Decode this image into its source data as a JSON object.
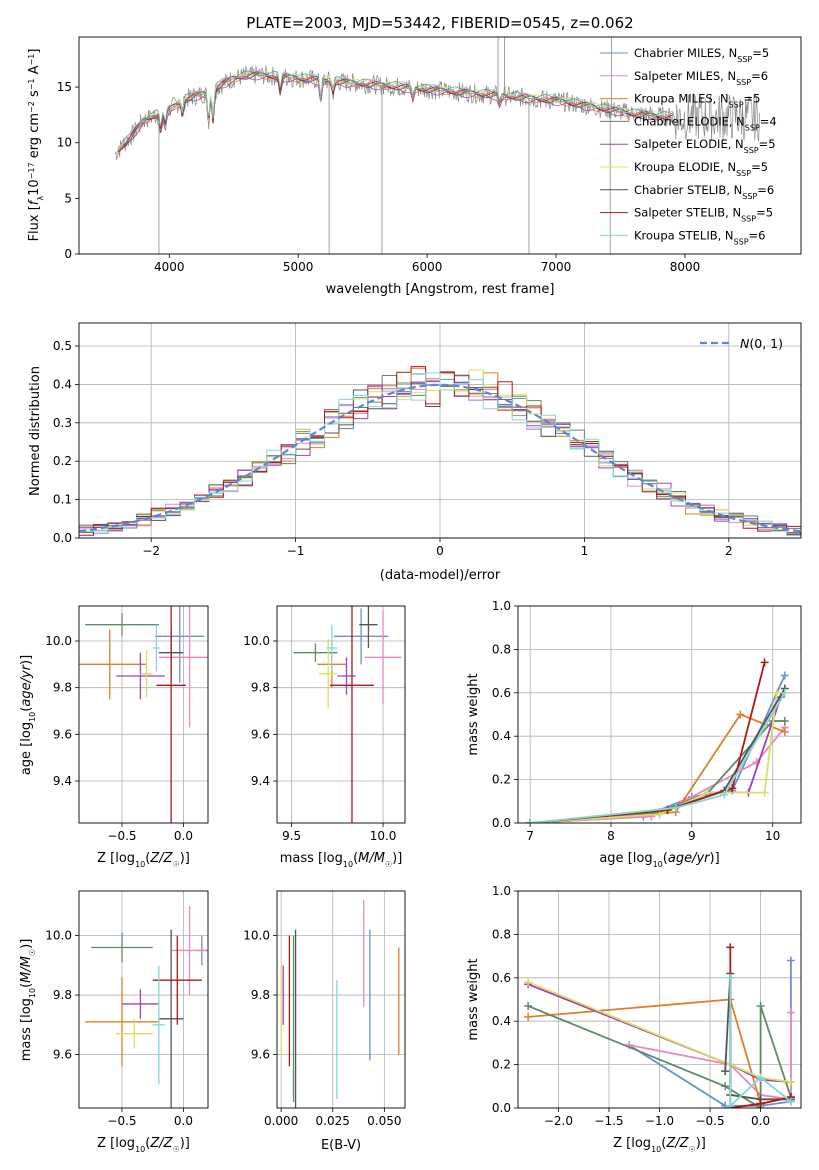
{
  "figure": {
    "title": "PLATE=2003, MJD=53442, FIBERID=0545, z=0.062",
    "colors": {
      "Chabrier MILES": "#6b8fd6",
      "Salpeter MILES": "#e88ac0",
      "Kroupa MILES": "#e07f2a",
      "Chabrier ELODIE": "#5f8a66",
      "Salpeter ELODIE": "#a040b8",
      "Kroupa ELODIE": "#d8e060",
      "Chabrier STELIB": "#555555",
      "Salpeter STELIB": "#b01818",
      "Kroupa STELIB": "#80d8d8"
    }
  },
  "chart_data": [
    {
      "id": "spectrum",
      "type": "line",
      "xlabel": "wavelength [Angstrom, rest frame]",
      "ylabel": "Flux [f_λ 10^-17 erg cm^-2 s^-1 A^-1]",
      "xlim": [
        3300,
        8900
      ],
      "ylim": [
        0,
        19.5
      ],
      "xticks": [
        4000,
        5000,
        6000,
        7000,
        8000
      ],
      "yticks": [
        0,
        5,
        10,
        15
      ],
      "legend_position": "top-right",
      "legend": [
        {
          "model": "Chabrier MILES",
          "label": "Chabrier MILES, N",
          "nssp": "=5"
        },
        {
          "model": "Salpeter MILES",
          "label": "Salpeter MILES, N",
          "nssp": "=6"
        },
        {
          "model": "Kroupa MILES",
          "label": "Kroupa MILES, N",
          "nssp": "=5"
        },
        {
          "model": "Chabrier ELODIE",
          "label": "Chabrier ELODIE, N",
          "nssp": "=4"
        },
        {
          "model": "Salpeter ELODIE",
          "label": "Salpeter ELODIE, N",
          "nssp": "=5"
        },
        {
          "model": "Kroupa ELODIE",
          "label": "Kroupa ELODIE, N",
          "nssp": "=5"
        },
        {
          "model": "Chabrier STELIB",
          "label": "Chabrier STELIB, N",
          "nssp": "=6"
        },
        {
          "model": "Salpeter STELIB",
          "label": "Salpeter STELIB, N",
          "nssp": "=5"
        },
        {
          "model": "Kroupa STELIB",
          "label": "Kroupa STELIB, N",
          "nssp": "=6"
        }
      ],
      "continuum": [
        [
          3580,
          9.0
        ],
        [
          3700,
          10.5
        ],
        [
          3800,
          12.0
        ],
        [
          3900,
          12.5
        ],
        [
          4000,
          13.0
        ],
        [
          4100,
          13.8
        ],
        [
          4200,
          14.2
        ],
        [
          4300,
          14.5
        ],
        [
          4400,
          15.2
        ],
        [
          4500,
          15.8
        ],
        [
          4600,
          16.0
        ],
        [
          4700,
          16.1
        ],
        [
          4800,
          16.0
        ],
        [
          4900,
          15.9
        ],
        [
          5000,
          15.8
        ],
        [
          5200,
          15.6
        ],
        [
          5400,
          15.4
        ],
        [
          5600,
          15.2
        ],
        [
          5800,
          15.0
        ],
        [
          6000,
          14.8
        ],
        [
          6200,
          14.6
        ],
        [
          6400,
          14.4
        ],
        [
          6600,
          14.2
        ],
        [
          6800,
          14.0
        ],
        [
          7000,
          13.8
        ],
        [
          7200,
          13.4
        ],
        [
          7400,
          13.0
        ],
        [
          7600,
          12.6
        ],
        [
          7800,
          12.4
        ],
        [
          7900,
          12.3
        ]
      ],
      "absorption_features": [
        [
          3934,
          11.0
        ],
        [
          3968,
          11.5
        ],
        [
          4102,
          12.5
        ],
        [
          4305,
          12.0
        ],
        [
          4340,
          12.0
        ],
        [
          4861,
          14.5
        ],
        [
          5175,
          14.0
        ],
        [
          5270,
          14.5
        ],
        [
          5890,
          14.0
        ],
        [
          6563,
          13.5
        ]
      ],
      "spikes": [
        [
          3920,
          0
        ],
        [
          5240,
          0
        ],
        [
          5650,
          0
        ],
        [
          6790,
          0
        ],
        [
          7420,
          0
        ],
        [
          6550,
          19.5
        ],
        [
          6600,
          19.5
        ],
        [
          7430,
          19.5
        ]
      ]
    },
    {
      "id": "residuals",
      "type": "bar",
      "xlabel": "(data-model)/error",
      "ylabel": "Normed distribution",
      "xlim": [
        -2.5,
        2.5
      ],
      "ylim": [
        0,
        0.56
      ],
      "xticks": [
        -2,
        -1,
        0,
        1,
        2
      ],
      "yticks": [
        0.0,
        0.1,
        0.2,
        0.3,
        0.4,
        0.5
      ],
      "bin_start": -2.5,
      "bin_width": 0.1,
      "reference_label": "N(0,1)",
      "reference_mu": 0,
      "reference_sigma": 1,
      "legend_position": "top-right"
    },
    {
      "id": "age-vs-metallicity",
      "type": "scatter",
      "xlabel": "Z [log10(Z/Z☉)]",
      "ylabel": "age [log10(age/yr)]",
      "xlim": [
        -0.85,
        0.2
      ],
      "ylim": [
        9.22,
        10.15
      ],
      "xticks": [
        -0.5,
        0.0
      ],
      "yticks": [
        9.4,
        9.6,
        9.8,
        10.0
      ],
      "points": [
        {
          "model": "Chabrier MILES",
          "x": -0.03,
          "y": 10.02,
          "xerr": 0.2,
          "yerr": 0.2
        },
        {
          "model": "Salpeter MILES",
          "x": 0.05,
          "y": 9.93,
          "xerr": 0.25,
          "yerr": 0.3
        },
        {
          "model": "Kroupa MILES",
          "x": -0.6,
          "y": 9.9,
          "xerr": 0.3,
          "yerr": 0.15
        },
        {
          "model": "Chabrier ELODIE",
          "x": -0.5,
          "y": 10.07,
          "xerr": 0.3,
          "yerr": 0.05
        },
        {
          "model": "Salpeter ELODIE",
          "x": -0.35,
          "y": 9.85,
          "xerr": 0.2,
          "yerr": 0.1
        },
        {
          "model": "Kroupa ELODIE",
          "x": -0.3,
          "y": 9.86,
          "xerr": 0.05,
          "yerr": 0.1
        },
        {
          "model": "Chabrier STELIB",
          "x": -0.1,
          "y": 9.95,
          "xerr": 0.1,
          "yerr": 0.1
        },
        {
          "model": "Salpeter STELIB",
          "x": -0.1,
          "y": 9.81,
          "xerr": 0.12,
          "yerr": 0.6
        },
        {
          "model": "Kroupa STELIB",
          "x": -0.22,
          "y": 9.97,
          "xerr": 0.03,
          "yerr": 0.1
        }
      ]
    },
    {
      "id": "age-vs-mass",
      "type": "scatter",
      "xlabel": "mass [log10(M/M☉)]",
      "ylabel": "",
      "xlim": [
        9.42,
        10.12
      ],
      "ylim": [
        9.22,
        10.15
      ],
      "xticks": [
        9.5,
        10.0
      ],
      "yticks": [
        9.4,
        9.6,
        9.8,
        10.0
      ],
      "points": [
        {
          "model": "Chabrier MILES",
          "x": 9.88,
          "y": 10.02,
          "xerr": 0.15,
          "yerr": 0.12
        },
        {
          "model": "Salpeter MILES",
          "x": 10.0,
          "y": 9.93,
          "xerr": 0.1,
          "yerr": 0.2
        },
        {
          "model": "Kroupa MILES",
          "x": 9.72,
          "y": 9.9,
          "xerr": 0.08,
          "yerr": 0.1
        },
        {
          "model": "Chabrier ELODIE",
          "x": 9.63,
          "y": 9.95,
          "xerr": 0.12,
          "yerr": 0.04
        },
        {
          "model": "Salpeter ELODIE",
          "x": 9.8,
          "y": 9.85,
          "xerr": 0.05,
          "yerr": 0.08
        },
        {
          "model": "Kroupa ELODIE",
          "x": 9.7,
          "y": 9.86,
          "xerr": 0.05,
          "yerr": 0.15
        },
        {
          "model": "Chabrier STELIB",
          "x": 9.92,
          "y": 10.07,
          "xerr": 0.05,
          "yerr": 0.1
        },
        {
          "model": "Salpeter STELIB",
          "x": 9.83,
          "y": 9.81,
          "xerr": 0.12,
          "yerr": 0.6
        },
        {
          "model": "Kroupa STELIB",
          "x": 9.72,
          "y": 9.97,
          "xerr": 0.03,
          "yerr": 0.1
        }
      ]
    },
    {
      "id": "weight-vs-age",
      "type": "line",
      "xlabel": "age [log10(age/yr)]",
      "ylabel": "mass weight",
      "xlim": [
        6.85,
        10.35
      ],
      "ylim": [
        0,
        1.0
      ],
      "xticks": [
        7,
        8,
        9,
        10
      ],
      "yticks": [
        0.0,
        0.2,
        0.4,
        0.6,
        0.8,
        1.0
      ],
      "series": [
        {
          "model": "Chabrier MILES",
          "x": [
            7.0,
            8.4,
            9.0,
            9.5,
            10.15
          ],
          "y": [
            0.0,
            0.03,
            0.12,
            0.15,
            0.68
          ]
        },
        {
          "model": "Salpeter MILES",
          "x": [
            7.0,
            8.5,
            8.9,
            9.8,
            10.15
          ],
          "y": [
            0.0,
            0.03,
            0.1,
            0.28,
            0.44
          ]
        },
        {
          "model": "Kroupa MILES",
          "x": [
            7.0,
            8.8,
            9.6,
            10.15
          ],
          "y": [
            0.0,
            0.05,
            0.5,
            0.42
          ]
        },
        {
          "model": "Chabrier ELODIE",
          "x": [
            7.0,
            8.6,
            9.2,
            10.0,
            10.15
          ],
          "y": [
            0.0,
            0.05,
            0.14,
            0.47,
            0.47
          ]
        },
        {
          "model": "Salpeter ELODIE",
          "x": [
            7.0,
            8.6,
            9.2,
            9.7,
            10.1
          ],
          "y": [
            0.0,
            0.04,
            0.14,
            0.14,
            0.58
          ]
        },
        {
          "model": "Kroupa ELODIE",
          "x": [
            7.0,
            8.6,
            9.2,
            9.9,
            10.05
          ],
          "y": [
            0.0,
            0.04,
            0.14,
            0.14,
            0.6
          ]
        },
        {
          "model": "Chabrier STELIB",
          "x": [
            7.0,
            8.7,
            9.4,
            10.15
          ],
          "y": [
            0.0,
            0.06,
            0.15,
            0.62
          ]
        },
        {
          "model": "Salpeter STELIB",
          "x": [
            7.0,
            8.7,
            9.5,
            9.9
          ],
          "y": [
            0.0,
            0.06,
            0.16,
            0.74
          ]
        },
        {
          "model": "Kroupa STELIB",
          "x": [
            7.0,
            8.8,
            9.4,
            10.15
          ],
          "y": [
            0.0,
            0.07,
            0.13,
            0.6
          ]
        }
      ]
    },
    {
      "id": "mass-vs-metallicity",
      "type": "scatter",
      "xlabel": "Z [log10(Z/Z☉)]",
      "ylabel": "mass [log10(M/M☉)]",
      "xlim": [
        -0.85,
        0.2
      ],
      "ylim": [
        9.42,
        10.15
      ],
      "xticks": [
        -0.5,
        0.0
      ],
      "yticks": [
        9.6,
        9.8,
        10.0
      ],
      "points": [
        {
          "model": "Chabrier MILES",
          "x": 0.15,
          "y": 9.95,
          "xerr": 0.05,
          "yerr": 0.05
        },
        {
          "model": "Salpeter MILES",
          "x": 0.05,
          "y": 9.95,
          "xerr": 0.15,
          "yerr": 0.15
        },
        {
          "model": "Kroupa MILES",
          "x": -0.5,
          "y": 9.71,
          "xerr": 0.3,
          "yerr": 0.15
        },
        {
          "model": "Chabrier ELODIE",
          "x": -0.5,
          "y": 9.96,
          "xerr": 0.25,
          "yerr": 0.05
        },
        {
          "model": "Salpeter ELODIE",
          "x": -0.35,
          "y": 9.77,
          "xerr": 0.15,
          "yerr": 0.05
        },
        {
          "model": "Kroupa ELODIE",
          "x": -0.4,
          "y": 9.67,
          "xerr": 0.15,
          "yerr": 0.05
        },
        {
          "model": "Chabrier STELIB",
          "x": -0.1,
          "y": 9.72,
          "xerr": 0.1,
          "yerr": 0.3
        },
        {
          "model": "Salpeter STELIB",
          "x": -0.05,
          "y": 9.85,
          "xerr": 0.2,
          "yerr": 0.15
        },
        {
          "model": "Kroupa STELIB",
          "x": -0.2,
          "y": 9.7,
          "xerr": 0.05,
          "yerr": 0.2
        }
      ]
    },
    {
      "id": "mass-vs-ebv",
      "type": "scatter",
      "xlabel": "E(B-V)",
      "ylabel": "",
      "xlim": [
        -0.002,
        0.06
      ],
      "ylim": [
        9.42,
        10.15
      ],
      "xticks": [
        0.0,
        0.025,
        0.05
      ],
      "xtick_labels": [
        "0.000",
        "0.025",
        "0.050"
      ],
      "yticks": [
        9.6,
        9.8,
        10.0
      ],
      "points": [
        {
          "model": "Chabrier MILES",
          "x": 0.043,
          "y": 9.8,
          "yerr": 0.22
        },
        {
          "model": "Salpeter MILES",
          "x": 0.04,
          "y": 9.94,
          "yerr": 0.18
        },
        {
          "model": "Kroupa MILES",
          "x": 0.057,
          "y": 9.78,
          "yerr": 0.18
        },
        {
          "model": "Chabrier ELODIE",
          "x": 0.006,
          "y": 9.72,
          "yerr": 0.28
        },
        {
          "model": "Salpeter ELODIE",
          "x": 0.001,
          "y": 9.8,
          "yerr": 0.1
        },
        {
          "model": "Kroupa ELODIE",
          "x": 0.0,
          "y": 9.75,
          "yerr": 0.15
        },
        {
          "model": "Chabrier STELIB",
          "x": 0.007,
          "y": 9.72,
          "yerr": 0.3
        },
        {
          "model": "Salpeter STELIB",
          "x": 0.004,
          "y": 9.78,
          "yerr": 0.22
        },
        {
          "model": "Kroupa STELIB",
          "x": 0.027,
          "y": 9.65,
          "yerr": 0.2
        }
      ]
    },
    {
      "id": "weight-vs-metallicity",
      "type": "line",
      "xlabel": "Z [log10(Z/Z☉)]",
      "ylabel": "mass weight",
      "xlim": [
        -2.4,
        0.4
      ],
      "ylim": [
        0,
        1.0
      ],
      "xticks": [
        -2.0,
        -1.5,
        -1.0,
        -0.5,
        0.0
      ],
      "yticks": [
        0.0,
        0.2,
        0.4,
        0.6,
        0.8,
        1.0
      ],
      "series": [
        {
          "model": "Chabrier MILES",
          "x": [
            -1.3,
            -0.35,
            -0.3,
            0.0,
            0.3,
            0.3
          ],
          "y": [
            0.29,
            0.01,
            0.01,
            0.01,
            0.03,
            0.68
          ]
        },
        {
          "model": "Salpeter MILES",
          "x": [
            -1.3,
            -0.3,
            0.0,
            0.3,
            0.3
          ],
          "y": [
            0.29,
            0.2,
            0.06,
            0.04,
            0.44
          ]
        },
        {
          "model": "Kroupa MILES",
          "x": [
            -2.3,
            -0.3,
            0.0,
            0.3
          ],
          "y": [
            0.42,
            0.5,
            0.02,
            0.05
          ]
        },
        {
          "model": "Chabrier ELODIE",
          "x": [
            -2.3,
            -0.35,
            0.0,
            0.0,
            0.3
          ],
          "y": [
            0.47,
            0.1,
            0.0,
            0.47,
            0.05
          ]
        },
        {
          "model": "Salpeter ELODIE",
          "x": [
            -2.3,
            -0.3,
            0.0,
            0.3
          ],
          "y": [
            0.57,
            0.2,
            0.13,
            0.12
          ]
        },
        {
          "model": "Kroupa ELODIE",
          "x": [
            -2.3,
            -0.3,
            0.0,
            0.3
          ],
          "y": [
            0.58,
            0.2,
            0.14,
            0.12
          ]
        },
        {
          "model": "Chabrier STELIB",
          "x": [
            -0.35,
            -0.3,
            -0.3,
            0.0,
            0.3
          ],
          "y": [
            0.17,
            0.62,
            0.06,
            0.04,
            0.04
          ]
        },
        {
          "model": "Salpeter STELIB",
          "x": [
            -0.3,
            -0.3,
            0.0,
            0.3
          ],
          "y": [
            0.74,
            0.0,
            0.02,
            0.05
          ]
        },
        {
          "model": "Kroupa STELIB",
          "x": [
            -0.3,
            -0.3,
            0.0,
            0.3
          ],
          "y": [
            0.6,
            0.01,
            0.14,
            0.03
          ]
        }
      ]
    }
  ]
}
